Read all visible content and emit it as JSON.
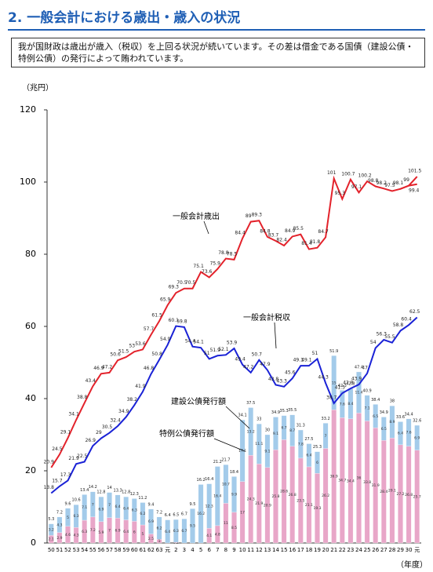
{
  "title": "2. 一般会計における歳出・歳入の状況",
  "note": "我が国財政は歳出が歳入（税収）を上回る状況が続いています。その差は借金である国債（建設公債・特例公債）の発行によって賄われています。",
  "chart_data": {
    "type": "bar-line",
    "y_label": "（兆円）",
    "x_label": "（年度）",
    "ylim": [
      0,
      120
    ],
    "yticks": [
      0,
      20,
      40,
      60,
      80,
      100,
      120
    ],
    "categories": [
      "50",
      "51",
      "52",
      "53",
      "54",
      "55",
      "56",
      "57",
      "58",
      "59",
      "60",
      "61",
      "62",
      "63",
      "元",
      "2",
      "3",
      "4",
      "5",
      "6",
      "7",
      "8",
      "9",
      "10",
      "11",
      "12",
      "13",
      "14",
      "15",
      "16",
      "17",
      "18",
      "19",
      "20",
      "21",
      "22",
      "23",
      "24",
      "25",
      "26",
      "27",
      "28",
      "29",
      "30",
      "元"
    ],
    "bars": [
      {
        "name": "特例公債発行額",
        "color": "#e8a6c8",
        "values": [
          2.1,
          2.9,
          4.6,
          4.3,
          6.3,
          7.2,
          5.9,
          7.0,
          6.9,
          6.4,
          6.0,
          5.0,
          2.5,
          1.0,
          0,
          0.2,
          0,
          0,
          0,
          4.1,
          4.8,
          11.0,
          8.5,
          17.0,
          24.3,
          21.9,
          20.9,
          25.8,
          28.6,
          26.8,
          23.5,
          21.1,
          19.3,
          26.2,
          36.9,
          34.7,
          34.4,
          36.0,
          33.8,
          31.9,
          28.4,
          29.1,
          27.2,
          26.8,
          25.7
        ]
      },
      {
        "name": "建設公債発行額",
        "color": "#a3cbea",
        "values": [
          3.2,
          4.3,
          5.0,
          6.3,
          7.1,
          7.0,
          6.9,
          7.0,
          6.4,
          6.4,
          6.3,
          6.2,
          6.9,
          6.2,
          6.4,
          6.3,
          6.7,
          9.5,
          16.2,
          12.3,
          16.4,
          10.7,
          9.9,
          17.1,
          13.2,
          11.1,
          9.1,
          9.1,
          6.7,
          8.7,
          7.8,
          6.4,
          6.0,
          7.0,
          15.0,
          7.6,
          8.4,
          11.4,
          7.1,
          6.5,
          6.5,
          8.9,
          6.4,
          7.6,
          6.9
        ]
      }
    ],
    "totals": [
      5.3,
      7.2,
      9.6,
      10.6,
      13.4,
      14.2,
      12.8,
      14.0,
      13.3,
      12.8,
      12.3,
      11.2,
      9.4,
      7.2,
      6.4,
      6.5,
      6.7,
      9.5,
      16.2,
      16.4,
      21.2,
      21.7,
      18.4,
      34.1,
      37.5,
      33.0,
      30.0,
      34.9,
      35.3,
      35.5,
      31.3,
      27.5,
      25.3,
      33.2,
      51.9,
      42.3,
      42.8,
      47.4,
      40.9,
      38.4,
      34.9,
      38.0,
      33.6,
      34.4,
      32.6
    ],
    "series": [
      {
        "name": "一般会計歳出",
        "color": "#e3222b",
        "values": [
          20.9,
          24.5,
          29.1,
          34.1,
          38.8,
          43.4,
          46.9,
          47.2,
          50.6,
          51.5,
          53.0,
          53.6,
          57.7,
          61.5,
          65.9,
          69.3,
          70.5,
          70.5,
          75.1,
          73.6,
          75.9,
          78.8,
          78.5,
          84.4,
          89.0,
          89.3,
          84.8,
          83.7,
          82.4,
          84.9,
          85.5,
          81.4,
          81.8,
          84.7,
          101.0,
          95.3,
          100.7,
          97.1,
          100.2,
          98.8,
          98.2,
          97.5,
          98.1,
          99.0,
          101.5
        ],
        "alt_last": 99.4,
        "label_pos": [
          220,
          276
        ],
        "arrow_to": [
          266,
          298
        ]
      },
      {
        "name": "一般会計税収",
        "color": "#1a22d6",
        "values": [
          13.8,
          15.7,
          17.3,
          21.9,
          22.5,
          26.9,
          29.0,
          30.5,
          32.4,
          34.9,
          38.2,
          41.9,
          46.8,
          50.8,
          54.9,
          60.1,
          59.8,
          54.4,
          54.1,
          51.0,
          51.9,
          52.1,
          53.9,
          49.4,
          47.2,
          50.7,
          47.9,
          43.8,
          43.3,
          45.6,
          49.1,
          49.1,
          51.0,
          44.3,
          38.7,
          41.5,
          42.8,
          43.9,
          47.0,
          54.0,
          56.3,
          55.5,
          58.8,
          60.4,
          62.5
        ],
        "label_pos": [
          310,
          405
        ],
        "arrow_to": [
          352,
          444
        ]
      }
    ]
  }
}
